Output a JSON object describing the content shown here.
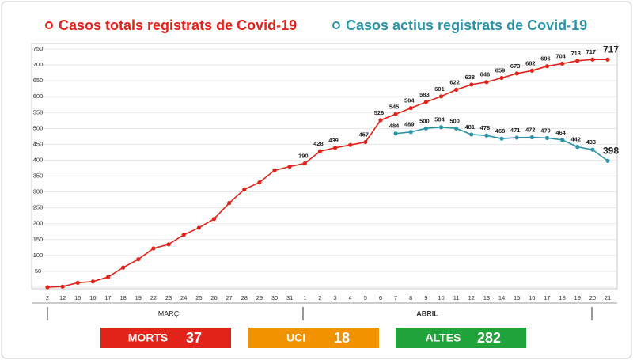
{
  "chart_data": {
    "type": "line",
    "categories": [
      "2",
      "12",
      "15",
      "16",
      "17",
      "18",
      "19",
      "22",
      "23",
      "24",
      "25",
      "26",
      "27",
      "28",
      "29",
      "30",
      "31",
      "1",
      "2",
      "3",
      "4",
      "5",
      "6",
      "7",
      "8",
      "9",
      "10",
      "11",
      "12",
      "13",
      "14",
      "15",
      "16",
      "17",
      "18",
      "19",
      "20",
      "21"
    ],
    "series": [
      {
        "name": "Casos totals registrats de Covid-19",
        "color": "#e2231a",
        "values": [
          0,
          2,
          14,
          18,
          32,
          62,
          88,
          122,
          135,
          165,
          187,
          215,
          265,
          308,
          330,
          368,
          380,
          390,
          428,
          439,
          448,
          457,
          526,
          545,
          564,
          583,
          601,
          622,
          638,
          646,
          659,
          673,
          682,
          696,
          704,
          713,
          717,
          717
        ],
        "value_labels": [
          null,
          null,
          null,
          null,
          null,
          null,
          null,
          null,
          null,
          null,
          null,
          null,
          null,
          null,
          null,
          null,
          null,
          "390",
          "428",
          "439",
          null,
          "457",
          "526",
          "545",
          "564",
          "583",
          "601",
          "622",
          "638",
          "646",
          "659",
          "673",
          "682",
          "696",
          "704",
          "713",
          "717",
          "717"
        ]
      },
      {
        "name": "Casos actius registrats de Covid-19",
        "color": "#2a93a8",
        "values": [
          null,
          null,
          null,
          null,
          null,
          null,
          null,
          null,
          null,
          null,
          null,
          null,
          null,
          null,
          null,
          null,
          null,
          null,
          null,
          null,
          null,
          null,
          null,
          484,
          489,
          500,
          504,
          500,
          481,
          478,
          468,
          471,
          472,
          470,
          464,
          442,
          433,
          398
        ],
        "value_labels": [
          null,
          null,
          null,
          null,
          null,
          null,
          null,
          null,
          null,
          null,
          null,
          null,
          null,
          null,
          null,
          null,
          null,
          null,
          null,
          null,
          null,
          null,
          null,
          "484",
          "489",
          "500",
          "504",
          "500",
          "481",
          "478",
          "468",
          "471",
          "472",
          "470",
          "464",
          "442",
          "433",
          "398"
        ]
      }
    ],
    "ylim": [
      0,
      750
    ],
    "yticks": [
      {
        "value": 0,
        "label": ""
      },
      50,
      100,
      150,
      200,
      250,
      300,
      350,
      400,
      450,
      500,
      550,
      600,
      650,
      700,
      750
    ],
    "grid": true,
    "months": [
      "MARÇ",
      "ABRIL"
    ]
  },
  "stats": [
    {
      "label": "MORTS",
      "value": 37,
      "color": "#e2231a"
    },
    {
      "label": "UCI",
      "value": 18,
      "color": "#f39200"
    },
    {
      "label": "ALTES",
      "value": 282,
      "color": "#1fa33a"
    }
  ]
}
